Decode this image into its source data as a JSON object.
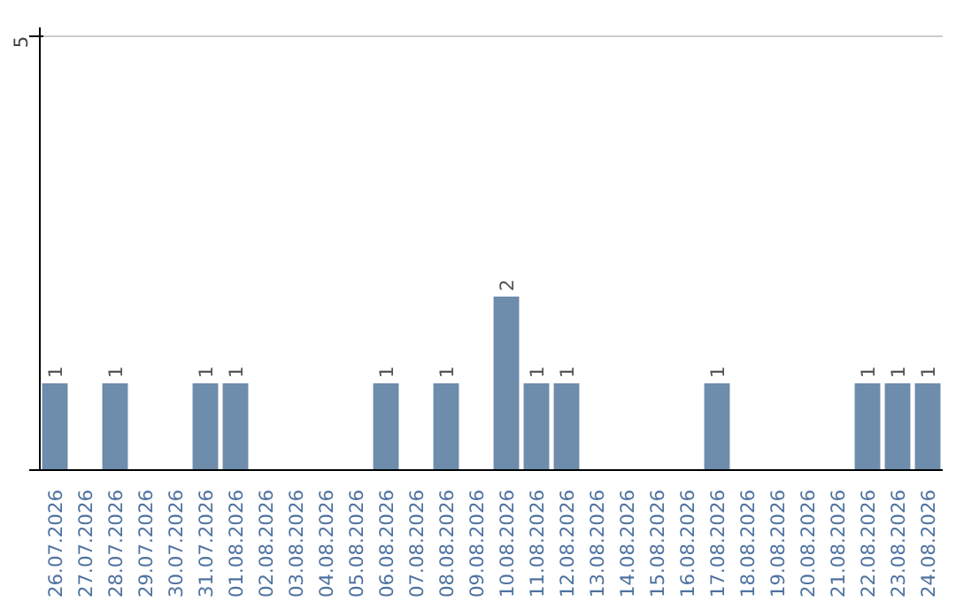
{
  "chart_data": {
    "type": "bar",
    "categories": [
      "26.07.2026",
      "27.07.2026",
      "28.07.2026",
      "29.07.2026",
      "30.07.2026",
      "31.07.2026",
      "01.08.2026",
      "02.08.2026",
      "03.08.2026",
      "04.08.2026",
      "05.08.2026",
      "06.08.2026",
      "07.08.2026",
      "08.08.2026",
      "09.08.2026",
      "10.08.2026",
      "11.08.2026",
      "12.08.2026",
      "13.08.2026",
      "14.08.2026",
      "15.08.2026",
      "16.08.2026",
      "17.08.2026",
      "18.08.2026",
      "19.08.2026",
      "20.08.2026",
      "21.08.2026",
      "22.08.2026",
      "23.08.2026",
      "24.08.2026"
    ],
    "values": [
      1,
      0,
      1,
      0,
      0,
      1,
      1,
      0,
      0,
      0,
      0,
      1,
      0,
      1,
      0,
      2,
      1,
      1,
      0,
      0,
      0,
      0,
      1,
      0,
      0,
      0,
      0,
      1,
      1,
      1
    ],
    "value_labels": [
      "1",
      null,
      "1",
      null,
      null,
      "1",
      "1",
      null,
      null,
      null,
      null,
      "1",
      null,
      "1",
      null,
      "2",
      "1",
      "1",
      null,
      null,
      null,
      null,
      "1",
      null,
      null,
      null,
      null,
      "1",
      "1",
      "1"
    ],
    "color": "#6e8cab",
    "ylim": [
      0,
      5.1
    ],
    "yticks": [
      {
        "value": 0,
        "label": null
      },
      5
    ],
    "grid": "y"
  }
}
